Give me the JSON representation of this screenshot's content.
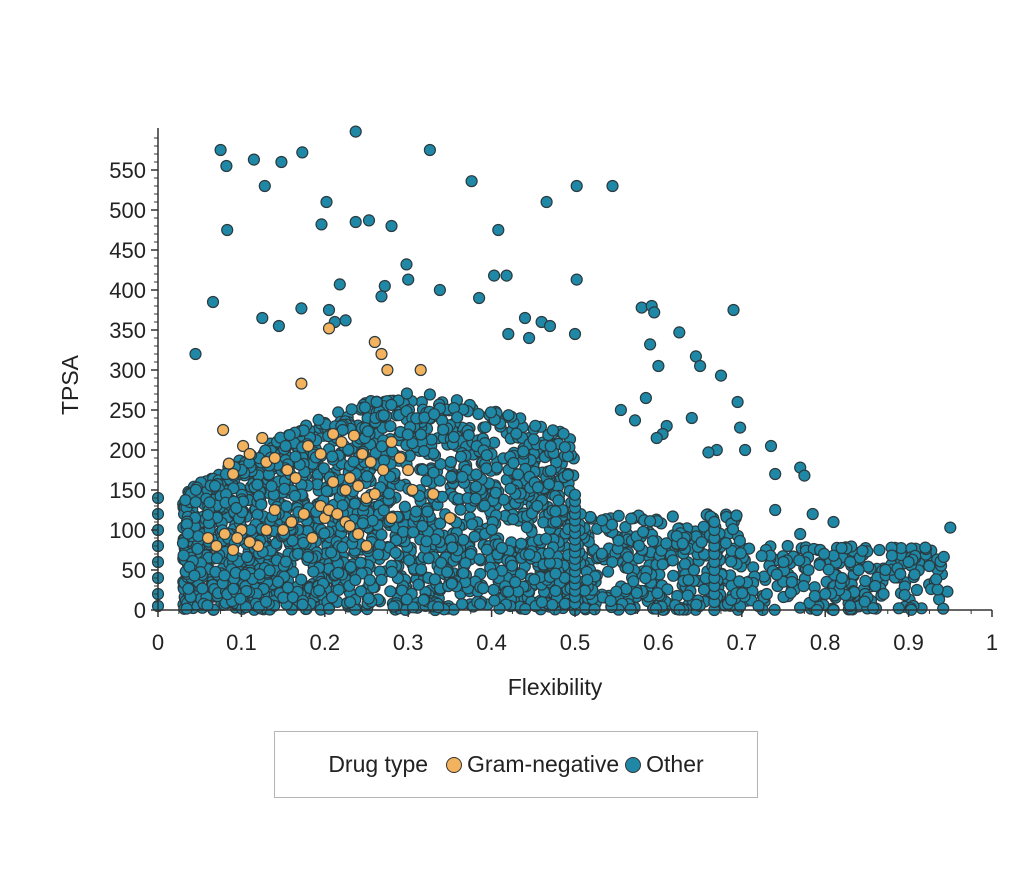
{
  "chart_data": {
    "type": "scatter",
    "xlabel": "Flexibility",
    "ylabel": "TPSA",
    "xlim": [
      0,
      1
    ],
    "ylim": [
      0,
      600
    ],
    "x_ticks": [
      "0",
      "0.1",
      "0.2",
      "0.3",
      "0.4",
      "0.5",
      "0.6",
      "0.7",
      "0.8",
      "0.9",
      "1"
    ],
    "y_ticks": [
      "0",
      "50",
      "100",
      "150",
      "200",
      "250",
      "300",
      "350",
      "400",
      "450",
      "500",
      "550"
    ],
    "grid": false,
    "legend": {
      "title": "Drug type",
      "placement": "bottom"
    },
    "colors": {
      "Gram-negative": "#f3b25e",
      "Other": "#1f88a6",
      "marker_edge": "#2b3a3f"
    },
    "series": [
      {
        "name": "Other",
        "points": [
          [
            0.0,
            140
          ],
          [
            0.0,
            120
          ],
          [
            0.0,
            100
          ],
          [
            0.0,
            80
          ],
          [
            0.0,
            60
          ],
          [
            0.0,
            40
          ],
          [
            0.0,
            20
          ],
          [
            0.0,
            5
          ],
          [
            0.075,
            575
          ],
          [
            0.082,
            555
          ],
          [
            0.083,
            475
          ],
          [
            0.115,
            563
          ],
          [
            0.128,
            530
          ],
          [
            0.148,
            560
          ],
          [
            0.173,
            572
          ],
          [
            0.237,
            598
          ],
          [
            0.326,
            575
          ],
          [
            0.376,
            536
          ],
          [
            0.196,
            482
          ],
          [
            0.202,
            510
          ],
          [
            0.237,
            485
          ],
          [
            0.253,
            487
          ],
          [
            0.28,
            480
          ],
          [
            0.466,
            510
          ],
          [
            0.502,
            530
          ],
          [
            0.545,
            530
          ],
          [
            0.408,
            475
          ],
          [
            0.298,
            432
          ],
          [
            0.3,
            413
          ],
          [
            0.403,
            418
          ],
          [
            0.418,
            418
          ],
          [
            0.502,
            413
          ],
          [
            0.338,
            400
          ],
          [
            0.272,
            405
          ],
          [
            0.218,
            407
          ],
          [
            0.066,
            385
          ],
          [
            0.045,
            320
          ],
          [
            0.125,
            365
          ],
          [
            0.145,
            355
          ],
          [
            0.172,
            377
          ],
          [
            0.205,
            375
          ],
          [
            0.212,
            360
          ],
          [
            0.225,
            362
          ],
          [
            0.268,
            392
          ],
          [
            0.385,
            390
          ],
          [
            0.42,
            345
          ],
          [
            0.44,
            365
          ],
          [
            0.445,
            340
          ],
          [
            0.46,
            360
          ],
          [
            0.47,
            355
          ],
          [
            0.5,
            345
          ],
          [
            0.58,
            378
          ],
          [
            0.592,
            380
          ],
          [
            0.595,
            372
          ],
          [
            0.625,
            347
          ],
          [
            0.645,
            317
          ],
          [
            0.65,
            305
          ],
          [
            0.69,
            375
          ],
          [
            0.675,
            293
          ],
          [
            0.59,
            332
          ],
          [
            0.6,
            305
          ],
          [
            0.695,
            260
          ],
          [
            0.698,
            228
          ],
          [
            0.704,
            200
          ],
          [
            0.67,
            200
          ],
          [
            0.66,
            197
          ],
          [
            0.64,
            240
          ],
          [
            0.61,
            230
          ],
          [
            0.605,
            220
          ],
          [
            0.598,
            215
          ],
          [
            0.585,
            265
          ],
          [
            0.572,
            237
          ],
          [
            0.555,
            250
          ],
          [
            0.735,
            205
          ],
          [
            0.74,
            170
          ],
          [
            0.77,
            178
          ],
          [
            0.775,
            168
          ],
          [
            0.74,
            125
          ],
          [
            0.785,
            120
          ],
          [
            0.77,
            95
          ],
          [
            0.81,
            110
          ],
          [
            0.95,
            103
          ],
          [
            0.92,
            78
          ],
          [
            0.9,
            60
          ],
          [
            0.88,
            68
          ],
          [
            0.865,
            75
          ],
          [
            0.84,
            50
          ],
          [
            0.83,
            60
          ],
          [
            0.82,
            40
          ],
          [
            0.8,
            20
          ],
          [
            0.79,
            0
          ],
          [
            0.76,
            35
          ],
          [
            0.75,
            60
          ],
          [
            0.73,
            20
          ],
          [
            0.72,
            5
          ],
          [
            0.86,
            30
          ],
          [
            0.87,
            20
          ],
          [
            0.89,
            45
          ],
          [
            0.91,
            25
          ],
          [
            0.83,
            5
          ],
          [
            0.81,
            0
          ],
          [
            0.78,
            50
          ],
          [
            0.755,
            80
          ]
        ]
      },
      {
        "name": "Gram-negative",
        "points": [
          [
            0.205,
            352
          ],
          [
            0.26,
            335
          ],
          [
            0.268,
            320
          ],
          [
            0.275,
            300
          ],
          [
            0.315,
            300
          ],
          [
            0.172,
            283
          ],
          [
            0.078,
            225
          ],
          [
            0.085,
            183
          ],
          [
            0.09,
            170
          ],
          [
            0.102,
            205
          ],
          [
            0.11,
            195
          ],
          [
            0.125,
            215
          ],
          [
            0.13,
            185
          ],
          [
            0.14,
            190
          ],
          [
            0.155,
            175
          ],
          [
            0.165,
            165
          ],
          [
            0.18,
            205
          ],
          [
            0.195,
            195
          ],
          [
            0.21,
            220
          ],
          [
            0.22,
            210
          ],
          [
            0.235,
            218
          ],
          [
            0.245,
            195
          ],
          [
            0.255,
            185
          ],
          [
            0.27,
            175
          ],
          [
            0.28,
            210
          ],
          [
            0.29,
            190
          ],
          [
            0.3,
            175
          ],
          [
            0.305,
            150
          ],
          [
            0.21,
            160
          ],
          [
            0.225,
            150
          ],
          [
            0.23,
            165
          ],
          [
            0.24,
            155
          ],
          [
            0.25,
            140
          ],
          [
            0.26,
            145
          ],
          [
            0.195,
            130
          ],
          [
            0.2,
            115
          ],
          [
            0.205,
            125
          ],
          [
            0.215,
            120
          ],
          [
            0.225,
            110
          ],
          [
            0.23,
            105
          ],
          [
            0.24,
            95
          ],
          [
            0.25,
            80
          ],
          [
            0.185,
            90
          ],
          [
            0.175,
            120
          ],
          [
            0.16,
            110
          ],
          [
            0.15,
            100
          ],
          [
            0.14,
            125
          ],
          [
            0.13,
            100
          ],
          [
            0.12,
            80
          ],
          [
            0.11,
            85
          ],
          [
            0.1,
            100
          ],
          [
            0.095,
            90
          ],
          [
            0.09,
            75
          ],
          [
            0.08,
            95
          ],
          [
            0.07,
            80
          ],
          [
            0.06,
            90
          ],
          [
            0.28,
            115
          ],
          [
            0.35,
            115
          ],
          [
            0.33,
            145
          ]
        ]
      }
    ]
  }
}
